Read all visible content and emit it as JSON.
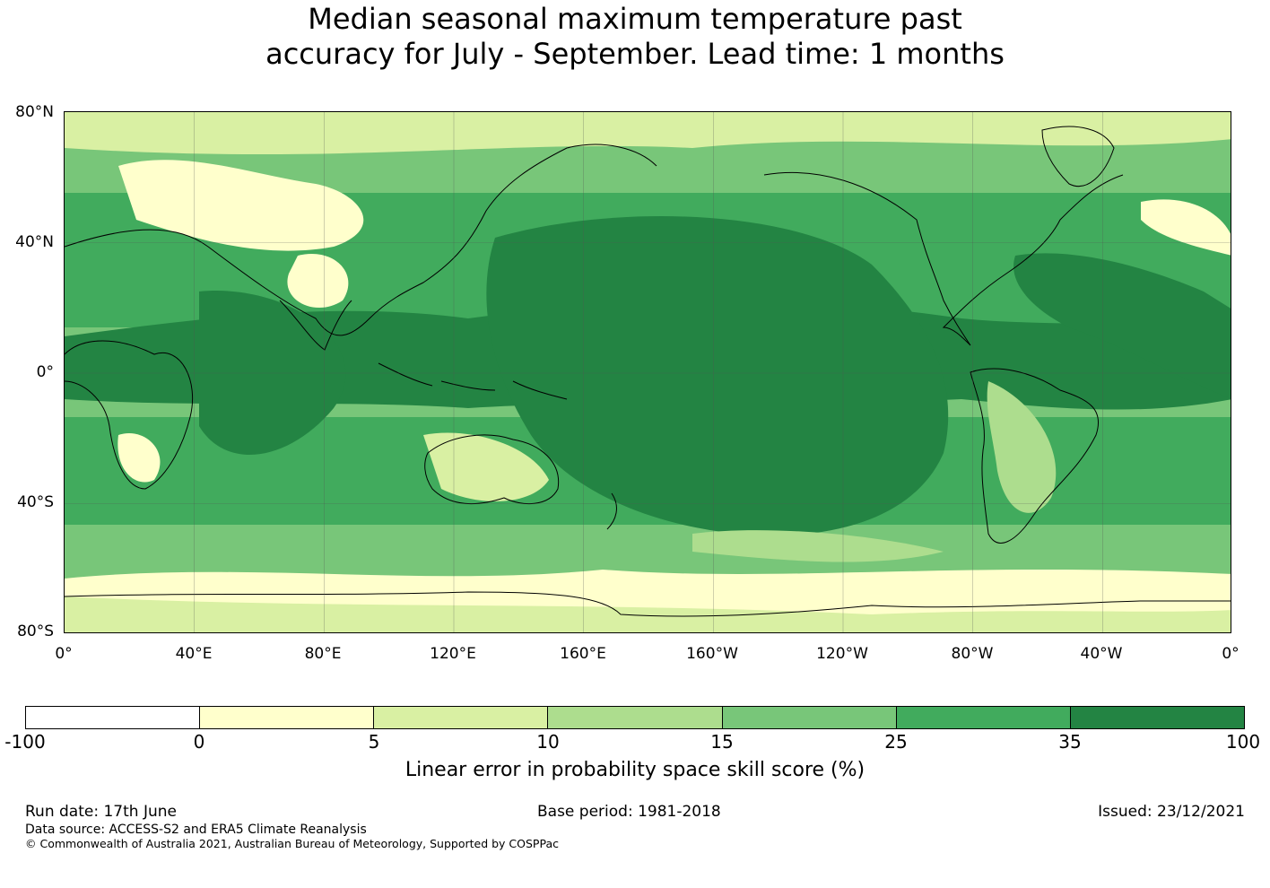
{
  "title_line1": "Median seasonal maximum temperature past",
  "title_line2": "accuracy for July - September. Lead time: 1 months",
  "map": {
    "latitude_labels": [
      "80°N",
      "40°N",
      "0°",
      "40°S",
      "80°S"
    ],
    "longitude_labels": [
      "0°",
      "40°E",
      "80°E",
      "120°E",
      "160°E",
      "160°W",
      "120°W",
      "80°W",
      "40°W",
      "0°"
    ],
    "center_longitude": "180°",
    "projection": "plate carree"
  },
  "colorbar": {
    "colors": [
      "#ffffff",
      "#ffffcc",
      "#d9f0a3",
      "#addd8e",
      "#78c679",
      "#41ab5d",
      "#238443"
    ],
    "ticks": [
      "-100",
      "0",
      "5",
      "10",
      "15",
      "25",
      "35",
      "100"
    ],
    "label": "Linear error in probability space skill score (%)"
  },
  "footer": {
    "run_date": "Run date: 17th June",
    "base_period": "Base period: 1981-2018",
    "issued": "Issued: 23/12/2021",
    "data_source": "Data source: ACCESS-S2 and ERA5 Climate Reanalysis",
    "copyright": "© Commonwealth of Australia 2021, Australian Bureau of Meteorology, Supported by COSPPac"
  }
}
